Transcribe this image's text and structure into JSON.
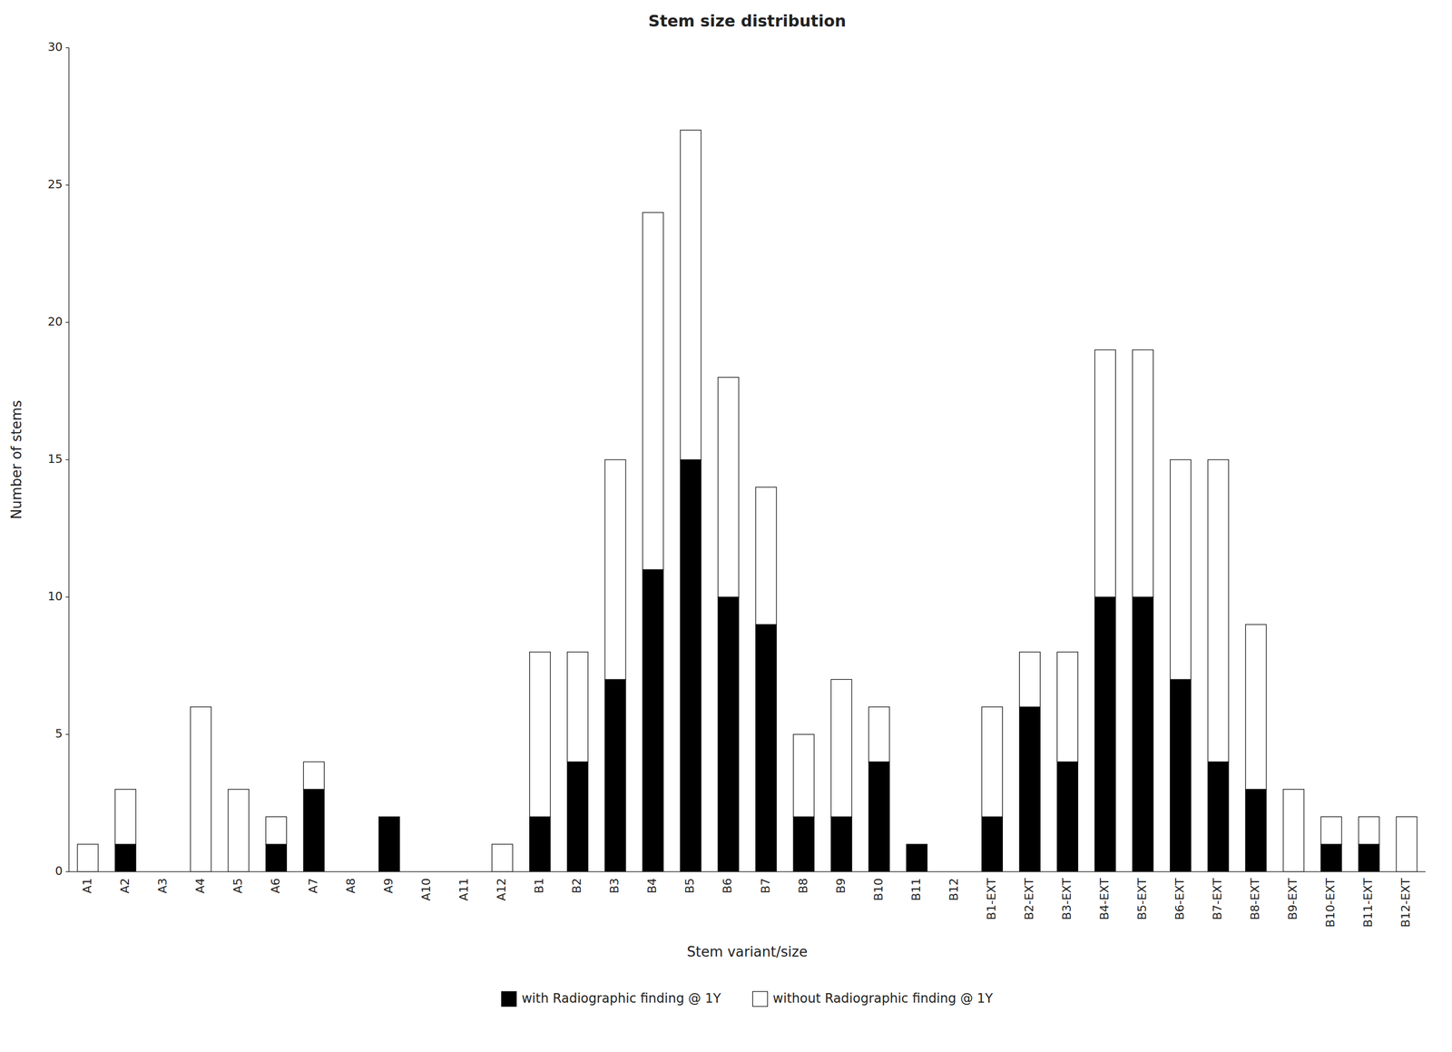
{
  "chart_data": {
    "type": "bar",
    "stacked": true,
    "title": "Stem size distribution",
    "x_label": "Stem variant/size",
    "y_label": "Number of stems",
    "categories": [
      "A1",
      "A2",
      "A3",
      "A4",
      "A5",
      "A6",
      "A7",
      "A8",
      "A9",
      "A10",
      "A11",
      "A12",
      "B1",
      "B2",
      "B3",
      "B4",
      "B5",
      "B6",
      "B7",
      "B8",
      "B9",
      "B10",
      "B11",
      "B12",
      "B1-EXT",
      "B2-EXT",
      "B3-EXT",
      "B4-EXT",
      "B5-EXT",
      "B6-EXT",
      "B7-EXT",
      "B8-EXT",
      "B9-EXT",
      "B10-EXT",
      "B11-EXT",
      "B12-EXT"
    ],
    "series": [
      {
        "name": "with Radiographic finding @ 1Y",
        "color": "#000000",
        "values": [
          0,
          1,
          0,
          0,
          0,
          1,
          3,
          0,
          2,
          0,
          0,
          0,
          2,
          4,
          7,
          11,
          15,
          10,
          9,
          2,
          2,
          4,
          1,
          0,
          2,
          6,
          4,
          10,
          10,
          7,
          4,
          3,
          0,
          1,
          1,
          0
        ]
      },
      {
        "name": "without Radiographic finding @ 1Y",
        "color": "#ffffff",
        "values": [
          1,
          2,
          0,
          6,
          3,
          1,
          1,
          0,
          0,
          0,
          0,
          1,
          6,
          4,
          8,
          13,
          12,
          8,
          5,
          3,
          5,
          2,
          0,
          0,
          4,
          2,
          4,
          9,
          9,
          8,
          11,
          6,
          3,
          1,
          1,
          2
        ]
      }
    ],
    "ylim": [
      0,
      30
    ],
    "yticks": [
      0,
      5,
      10,
      15,
      20,
      25,
      30
    ],
    "grid": false,
    "legend": "bottom"
  }
}
